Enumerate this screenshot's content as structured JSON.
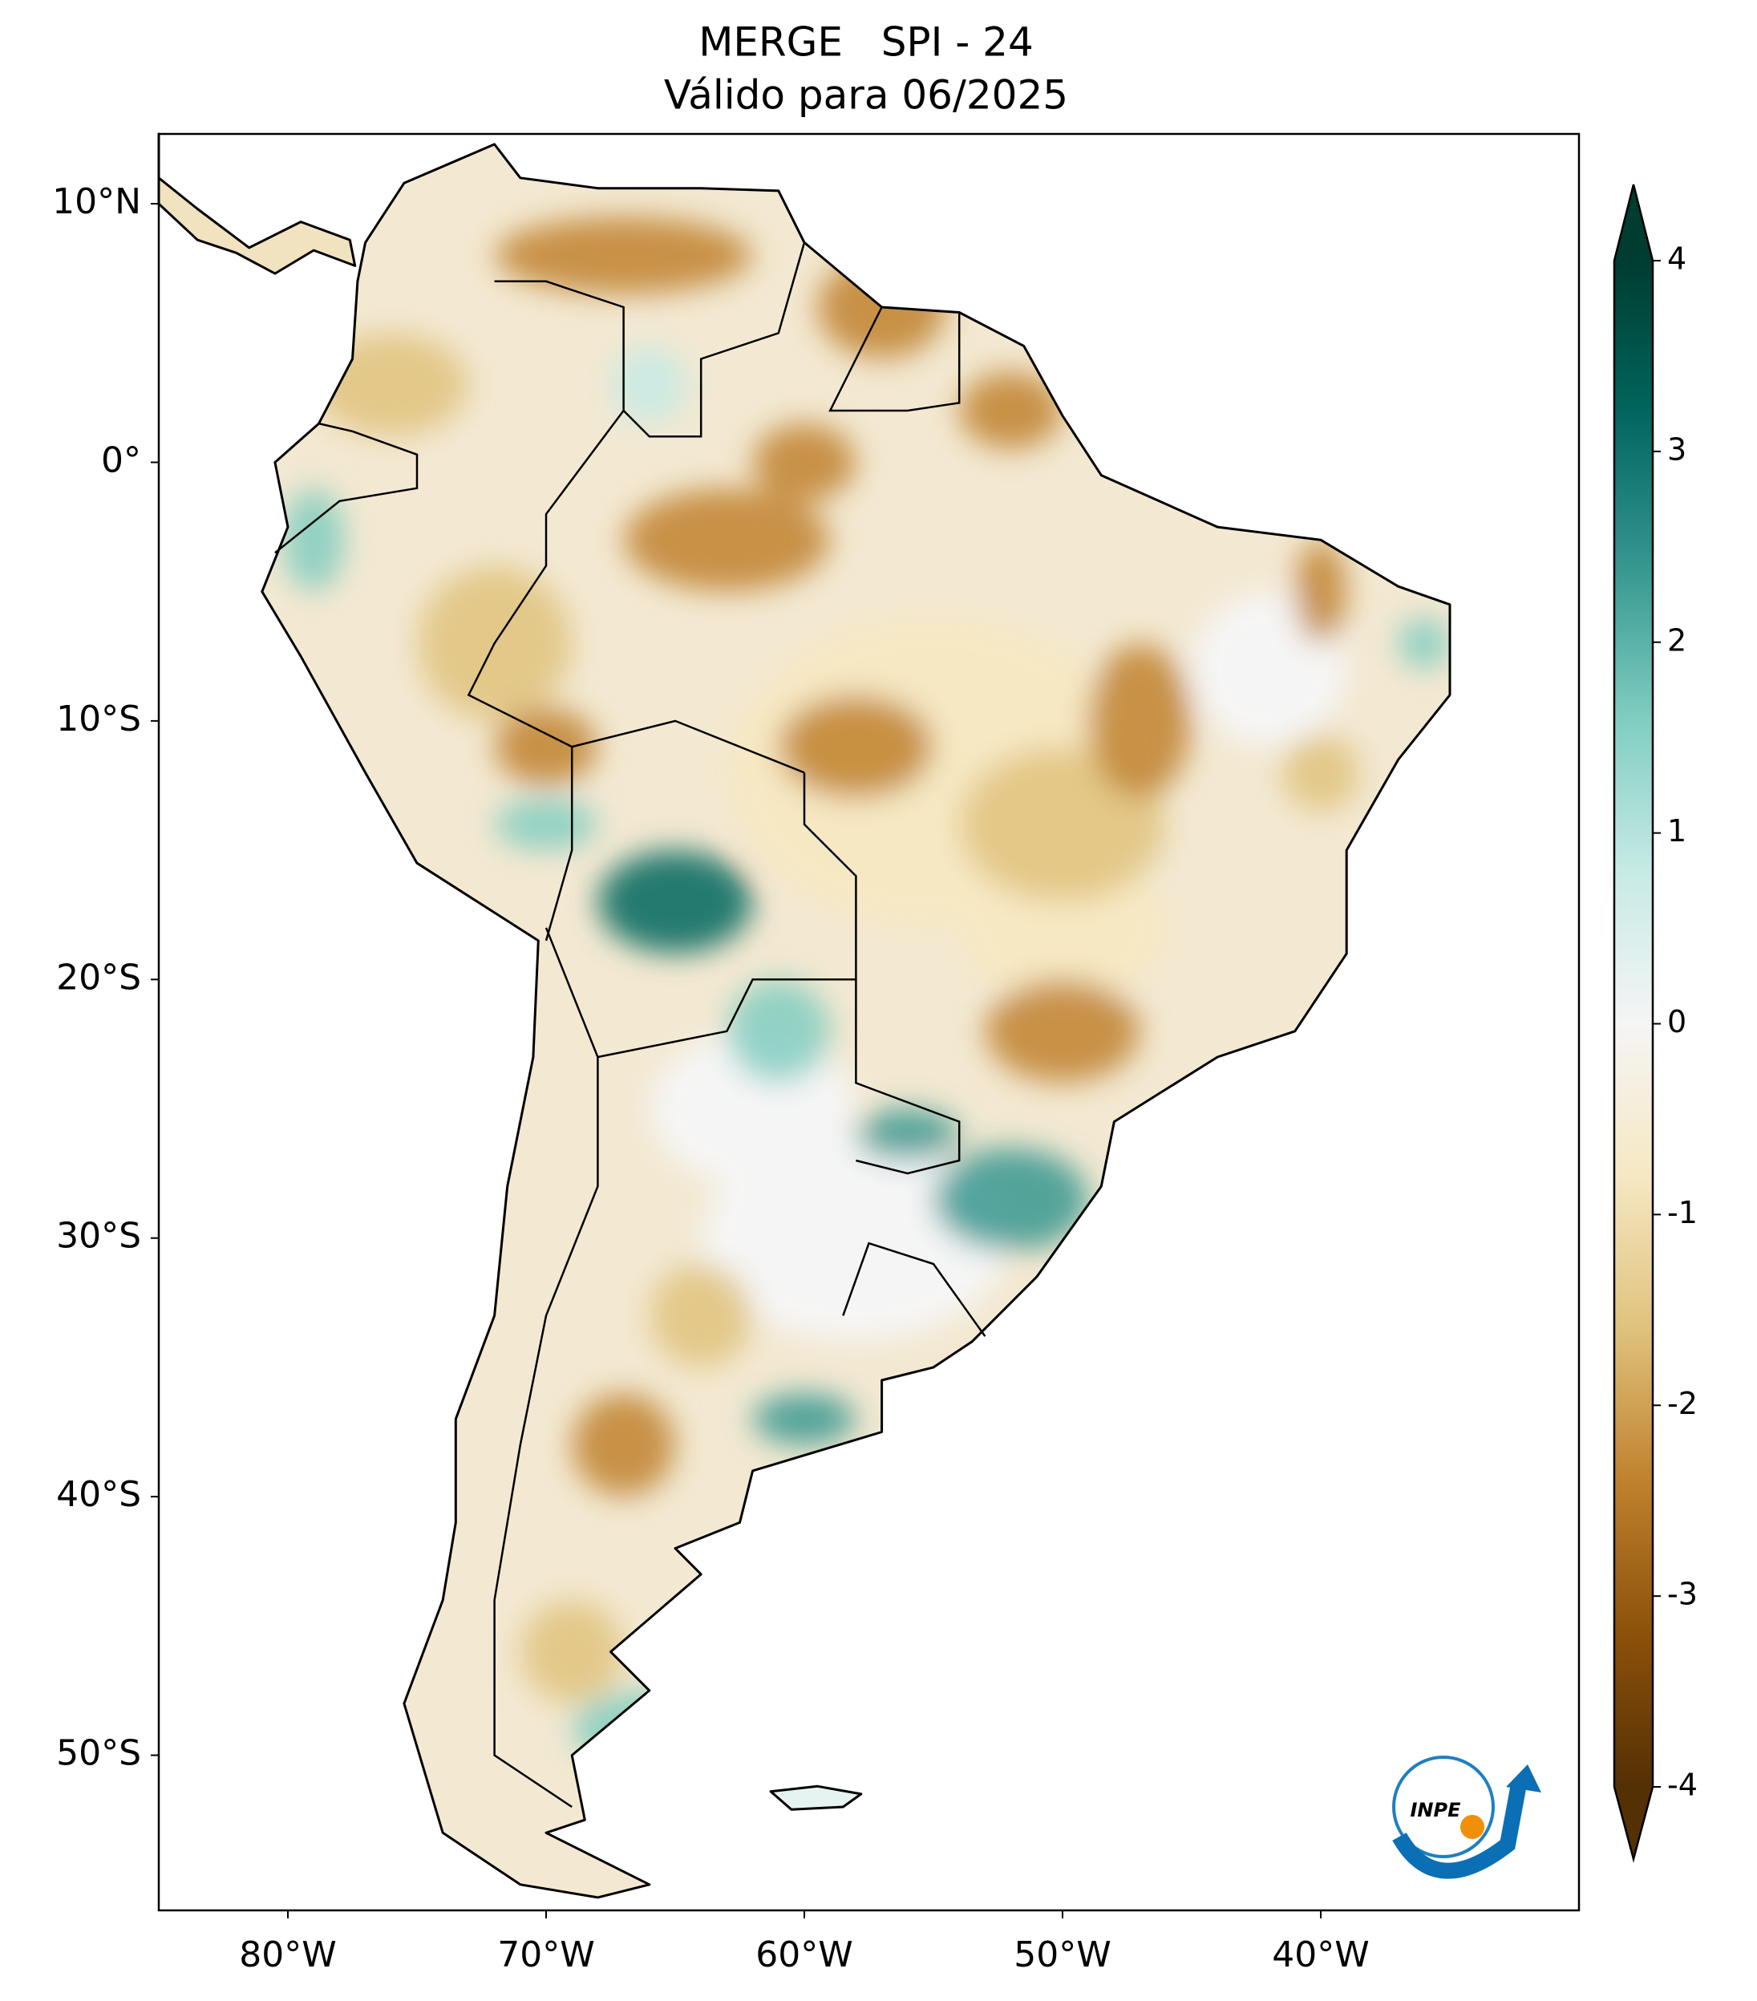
{
  "chart_data": {
    "type": "map",
    "title": "MERGE   SPI - 24",
    "subtitle": "Válido para 06/2025",
    "xlim": [
      -85,
      -30
    ],
    "ylim": [
      -56,
      12.7
    ],
    "xticks": [
      {
        "value": -80,
        "label": "80°W"
      },
      {
        "value": -70,
        "label": "70°W"
      },
      {
        "value": -60,
        "label": "60°W"
      },
      {
        "value": -50,
        "label": "50°W"
      },
      {
        "value": -40,
        "label": "40°W"
      }
    ],
    "yticks": [
      {
        "value": 10,
        "label": "10°N"
      },
      {
        "value": 0,
        "label": "0°"
      },
      {
        "value": -10,
        "label": "10°S"
      },
      {
        "value": -20,
        "label": "20°S"
      },
      {
        "value": -30,
        "label": "30°S"
      },
      {
        "value": -40,
        "label": "40°S"
      },
      {
        "value": -50,
        "label": "50°S"
      }
    ],
    "colorbar": {
      "lim": [
        -4,
        4
      ],
      "ticks": [
        -4,
        -3,
        -2,
        -1,
        0,
        1,
        2,
        3,
        4
      ],
      "colors": [
        "#543005",
        "#8c510a",
        "#bf812d",
        "#dfc27d",
        "#f6e8c3",
        "#f5f5f5",
        "#c7eae5",
        "#80cdc1",
        "#35978f",
        "#01665e",
        "#003c30"
      ]
    },
    "logo": "INPE"
  }
}
